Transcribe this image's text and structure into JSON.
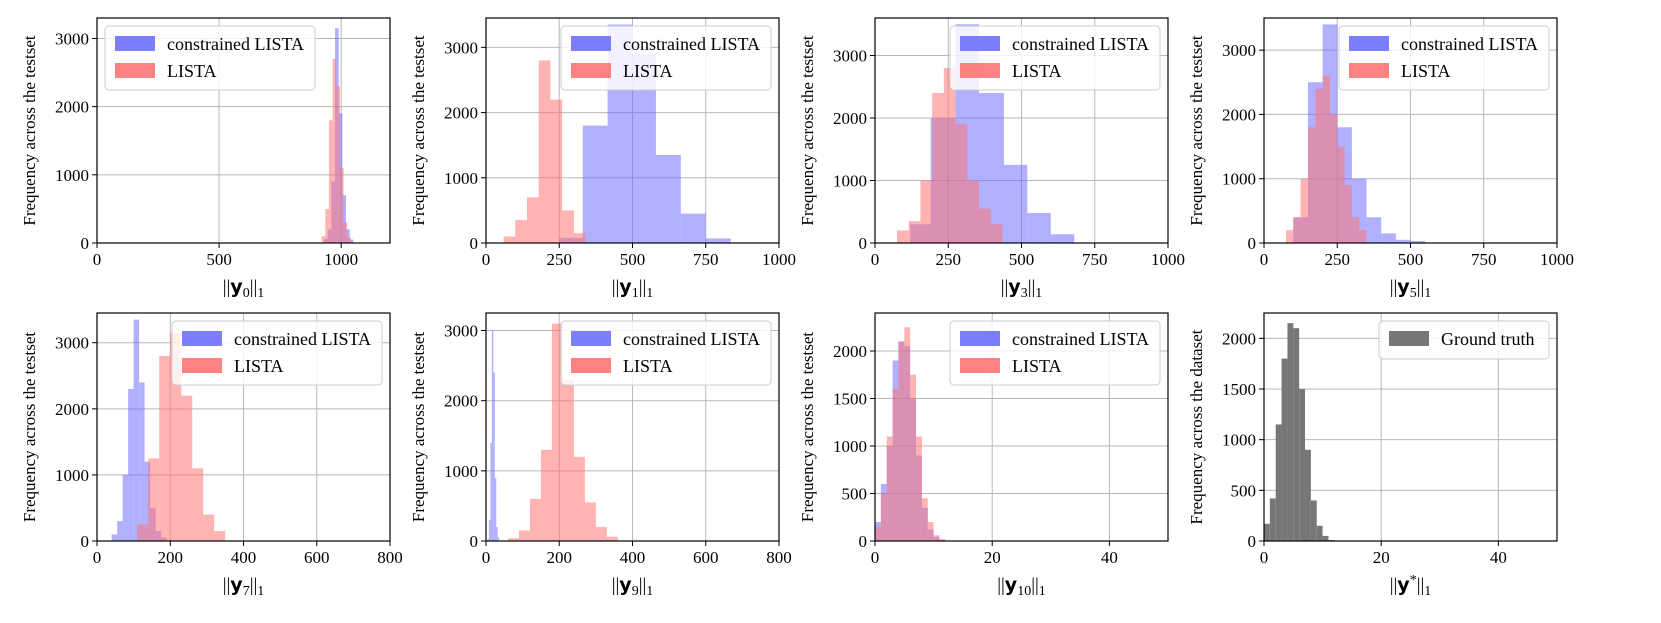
{
  "figure": {
    "colors": {
      "constrained": "#6f6fff",
      "lista": "#ff7474",
      "overlap": "#b83c6e",
      "ground": "#777777",
      "grid": "#b8b8b8"
    }
  },
  "chart_data": [
    {
      "type": "histogram",
      "title": "",
      "xlabel": "||y0||1",
      "ylabel": "Frequency across the testset",
      "xlim": [
        0,
        1200
      ],
      "ylim": [
        0,
        3300
      ],
      "xticks": [
        0,
        500,
        1000
      ],
      "yticks": [
        0,
        1000,
        2000,
        3000
      ],
      "legend": [
        "constrained LISTA",
        "LISTA"
      ],
      "legend_position": "top-left",
      "series": [
        {
          "name": "constrained LISTA",
          "color": "#6f6fff",
          "bins": [
            [
              930,
              945,
              60
            ],
            [
              945,
              960,
              200
            ],
            [
              960,
              975,
              900
            ],
            [
              975,
              990,
              3150
            ],
            [
              990,
              1005,
              1900
            ],
            [
              1005,
              1020,
              700
            ],
            [
              1020,
              1035,
              200
            ],
            [
              1035,
              1050,
              50
            ]
          ]
        },
        {
          "name": "LISTA",
          "color": "#ff7474",
          "bins": [
            [
              920,
              935,
              100
            ],
            [
              935,
              950,
              500
            ],
            [
              950,
              965,
              1800
            ],
            [
              965,
              980,
              2700
            ],
            [
              980,
              995,
              2300
            ],
            [
              995,
              1010,
              1100
            ],
            [
              1010,
              1025,
              300
            ],
            [
              1025,
              1040,
              80
            ]
          ]
        }
      ]
    },
    {
      "type": "histogram",
      "title": "",
      "xlabel": "||y1||1",
      "ylabel": "Frequency across the testset",
      "xlim": [
        0,
        1000
      ],
      "ylim": [
        0,
        3450
      ],
      "xticks": [
        0,
        250,
        500,
        750,
        1000
      ],
      "yticks": [
        0,
        1000,
        2000,
        3000
      ],
      "legend": [
        "constrained LISTA",
        "LISTA"
      ],
      "legend_position": "top-right",
      "series": [
        {
          "name": "constrained LISTA",
          "color": "#6f6fff",
          "bins": [
            [
              250,
              330,
              80
            ],
            [
              330,
              415,
              1800
            ],
            [
              415,
              500,
              3350
            ],
            [
              500,
              580,
              2900
            ],
            [
              580,
              665,
              1350
            ],
            [
              665,
              750,
              450
            ],
            [
              750,
              835,
              70
            ]
          ]
        },
        {
          "name": "LISTA",
          "color": "#ff7474",
          "bins": [
            [
              60,
              100,
              100
            ],
            [
              100,
              140,
              350
            ],
            [
              140,
              180,
              700
            ],
            [
              180,
              220,
              2800
            ],
            [
              220,
              260,
              2200
            ],
            [
              260,
              300,
              500
            ],
            [
              300,
              340,
              150
            ]
          ]
        }
      ]
    },
    {
      "type": "histogram",
      "title": "",
      "xlabel": "||y3||1",
      "ylabel": "Frequency across the testset",
      "xlim": [
        0,
        1000
      ],
      "ylim": [
        0,
        3600
      ],
      "xticks": [
        0,
        250,
        500,
        750,
        1000
      ],
      "yticks": [
        0,
        1000,
        2000,
        3000
      ],
      "legend": [
        "constrained LISTA",
        "LISTA"
      ],
      "legend_position": "top-right",
      "series": [
        {
          "name": "constrained LISTA",
          "color": "#6f6fff",
          "bins": [
            [
              120,
              190,
              300
            ],
            [
              190,
              275,
              2000
            ],
            [
              275,
              355,
              3500
            ],
            [
              355,
              440,
              2400
            ],
            [
              440,
              520,
              1250
            ],
            [
              520,
              600,
              480
            ],
            [
              600,
              680,
              140
            ]
          ]
        },
        {
          "name": "LISTA",
          "color": "#ff7474",
          "bins": [
            [
              75,
              115,
              200
            ],
            [
              115,
              155,
              350
            ],
            [
              155,
              195,
              1000
            ],
            [
              195,
              235,
              2400
            ],
            [
              235,
              275,
              2800
            ],
            [
              275,
              315,
              1900
            ],
            [
              315,
              355,
              1000
            ],
            [
              355,
              395,
              550
            ],
            [
              395,
              435,
              300
            ]
          ]
        }
      ]
    },
    {
      "type": "histogram",
      "title": "",
      "xlabel": "||y5||1",
      "ylabel": "Frequency across the testset",
      "xlim": [
        0,
        1000
      ],
      "ylim": [
        0,
        3500
      ],
      "xticks": [
        0,
        250,
        500,
        750,
        1000
      ],
      "yticks": [
        0,
        1000,
        2000,
        3000
      ],
      "legend": [
        "constrained LISTA",
        "LISTA"
      ],
      "legend_position": "top-right",
      "series": [
        {
          "name": "constrained LISTA",
          "color": "#6f6fff",
          "bins": [
            [
              100,
              150,
              400
            ],
            [
              150,
              200,
              2500
            ],
            [
              200,
              250,
              3400
            ],
            [
              250,
              300,
              1800
            ],
            [
              300,
              350,
              1000
            ],
            [
              350,
              400,
              400
            ],
            [
              400,
              450,
              150
            ],
            [
              450,
              500,
              50
            ],
            [
              500,
              550,
              30
            ]
          ]
        },
        {
          "name": "LISTA",
          "color": "#ff7474",
          "bins": [
            [
              75,
              100,
              200
            ],
            [
              100,
              125,
              400
            ],
            [
              125,
              150,
              1000
            ],
            [
              150,
              175,
              1800
            ],
            [
              175,
              200,
              2400
            ],
            [
              200,
              225,
              2600
            ],
            [
              225,
              250,
              2000
            ],
            [
              250,
              275,
              1500
            ],
            [
              275,
              300,
              900
            ],
            [
              300,
              325,
              400
            ],
            [
              325,
              350,
              200
            ]
          ]
        }
      ]
    },
    {
      "type": "histogram",
      "title": "",
      "xlabel": "||y7||1",
      "ylabel": "Frequency across the testset",
      "xlim": [
        0,
        800
      ],
      "ylim": [
        0,
        3450
      ],
      "xticks": [
        0,
        200,
        400,
        600,
        800
      ],
      "yticks": [
        0,
        1000,
        2000,
        3000
      ],
      "legend": [
        "constrained LISTA",
        "LISTA"
      ],
      "legend_position": "top-right",
      "series": [
        {
          "name": "constrained LISTA",
          "color": "#6f6fff",
          "bins": [
            [
              40,
              55,
              100
            ],
            [
              55,
              70,
              300
            ],
            [
              70,
              85,
              1000
            ],
            [
              85,
              100,
              2300
            ],
            [
              100,
              115,
              3350
            ],
            [
              115,
              130,
              2400
            ],
            [
              130,
              145,
              1200
            ],
            [
              145,
              160,
              500
            ],
            [
              160,
              175,
              150
            ],
            [
              175,
              190,
              50
            ]
          ]
        },
        {
          "name": "LISTA",
          "color": "#ff7474",
          "bins": [
            [
              110,
              140,
              250
            ],
            [
              140,
              170,
              1250
            ],
            [
              170,
              200,
              2800
            ],
            [
              200,
              230,
              3150
            ],
            [
              230,
              260,
              2200
            ],
            [
              260,
              290,
              1100
            ],
            [
              290,
              320,
              400
            ],
            [
              320,
              350,
              150
            ]
          ]
        }
      ]
    },
    {
      "type": "histogram",
      "title": "",
      "xlabel": "||y9||1",
      "ylabel": "Frequency across the testset",
      "xlim": [
        0,
        800
      ],
      "ylim": [
        0,
        3250
      ],
      "xticks": [
        0,
        200,
        400,
        600,
        800
      ],
      "yticks": [
        0,
        1000,
        2000,
        3000
      ],
      "legend": [
        "constrained LISTA",
        "LISTA"
      ],
      "legend_position": "top-right",
      "series": [
        {
          "name": "constrained LISTA",
          "color": "#6f6fff",
          "bins": [
            [
              4,
              8,
              30
            ],
            [
              8,
              12,
              300
            ],
            [
              12,
              16,
              1400
            ],
            [
              16,
              20,
              3000
            ],
            [
              20,
              24,
              2400
            ],
            [
              24,
              28,
              900
            ],
            [
              28,
              32,
              200
            ],
            [
              32,
              36,
              50
            ]
          ]
        },
        {
          "name": "LISTA",
          "color": "#ff7474",
          "bins": [
            [
              60,
              90,
              40
            ],
            [
              90,
              120,
              150
            ],
            [
              120,
              150,
              600
            ],
            [
              150,
              180,
              1300
            ],
            [
              180,
              210,
              3100
            ],
            [
              210,
              240,
              2300
            ],
            [
              240,
              270,
              1200
            ],
            [
              270,
              300,
              550
            ],
            [
              300,
              330,
              200
            ],
            [
              330,
              360,
              60
            ]
          ]
        }
      ]
    },
    {
      "type": "histogram",
      "title": "",
      "xlabel": "||y10||1",
      "ylabel": "Frequency across the testset",
      "xlim": [
        0,
        50
      ],
      "ylim": [
        0,
        2400
      ],
      "xticks": [
        0,
        20,
        40
      ],
      "yticks": [
        0,
        500,
        1000,
        1500,
        2000
      ],
      "legend": [
        "constrained LISTA",
        "LISTA"
      ],
      "legend_position": "top-right",
      "series": [
        {
          "name": "constrained LISTA",
          "color": "#6f6fff",
          "bins": [
            [
              0,
              1,
              200
            ],
            [
              1,
              2,
              600
            ],
            [
              2,
              3,
              1000
            ],
            [
              3,
              4,
              1900
            ],
            [
              4,
              5,
              2100
            ],
            [
              5,
              6,
              2050
            ],
            [
              6,
              7,
              1500
            ],
            [
              7,
              8,
              900
            ],
            [
              8,
              9,
              350
            ],
            [
              9,
              10,
              120
            ],
            [
              10,
              11,
              40
            ],
            [
              11,
              12,
              10
            ]
          ]
        },
        {
          "name": "LISTA",
          "color": "#ff7474",
          "bins": [
            [
              0,
              1,
              150
            ],
            [
              1,
              2,
              500
            ],
            [
              2,
              3,
              1100
            ],
            [
              3,
              4,
              1600
            ],
            [
              4,
              5,
              2100
            ],
            [
              5,
              6,
              2250
            ],
            [
              6,
              7,
              1750
            ],
            [
              7,
              8,
              1100
            ],
            [
              8,
              9,
              450
            ],
            [
              9,
              10,
              200
            ],
            [
              10,
              11,
              60
            ],
            [
              11,
              12,
              20
            ]
          ]
        }
      ]
    },
    {
      "type": "histogram",
      "title": "",
      "xlabel": "||y*||1",
      "ylabel": "Frequency across the dataset",
      "xlim": [
        0,
        50
      ],
      "ylim": [
        0,
        2250
      ],
      "xticks": [
        0,
        20,
        40
      ],
      "yticks": [
        0,
        500,
        1000,
        1500,
        2000
      ],
      "legend": [
        "Ground truth"
      ],
      "legend_position": "top-right",
      "series": [
        {
          "name": "Ground truth",
          "color": "#777777",
          "bins": [
            [
              0,
              1,
              170
            ],
            [
              1,
              2,
              420
            ],
            [
              2,
              3,
              1150
            ],
            [
              3,
              4,
              1800
            ],
            [
              4,
              5,
              2150
            ],
            [
              5,
              6,
              2100
            ],
            [
              6,
              7,
              1500
            ],
            [
              7,
              8,
              900
            ],
            [
              8,
              9,
              400
            ],
            [
              9,
              10,
              150
            ],
            [
              10,
              11,
              50
            ],
            [
              11,
              12,
              10
            ]
          ]
        }
      ]
    }
  ]
}
